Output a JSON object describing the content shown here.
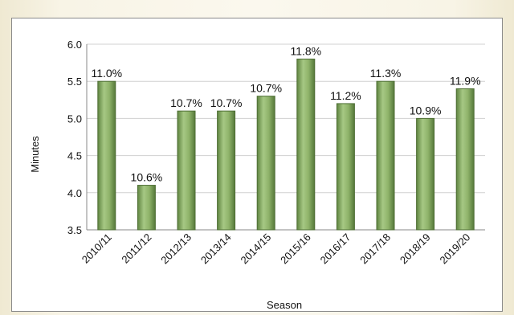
{
  "chart_data": {
    "type": "bar",
    "categories": [
      "2010/11",
      "2011/12",
      "2012/13",
      "2013/14",
      "2014/15",
      "2015/16",
      "2016/17",
      "2017/18",
      "2018/19",
      "2019/20"
    ],
    "values": [
      5.5,
      4.1,
      5.1,
      5.1,
      5.3,
      5.8,
      5.2,
      5.5,
      5.0,
      5.4
    ],
    "data_labels": [
      "11.0%",
      "10.6%",
      "10.7%",
      "10.7%",
      "10.7%",
      "11.8%",
      "11.2%",
      "11.3%",
      "10.9%",
      "11.9%"
    ],
    "xlabel": "Season",
    "ylabel": "Minutes",
    "ylim": [
      3.5,
      6.0
    ],
    "yticks": [
      3.5,
      4.0,
      4.5,
      5.0,
      5.5,
      6.0
    ],
    "ytick_labels": [
      "3.5",
      "4.0",
      "4.5",
      "5.0",
      "5.5",
      "6.0"
    ],
    "grid": true,
    "bar_color": "#8fb36a",
    "bar_edge_color": "#4f6f35"
  }
}
